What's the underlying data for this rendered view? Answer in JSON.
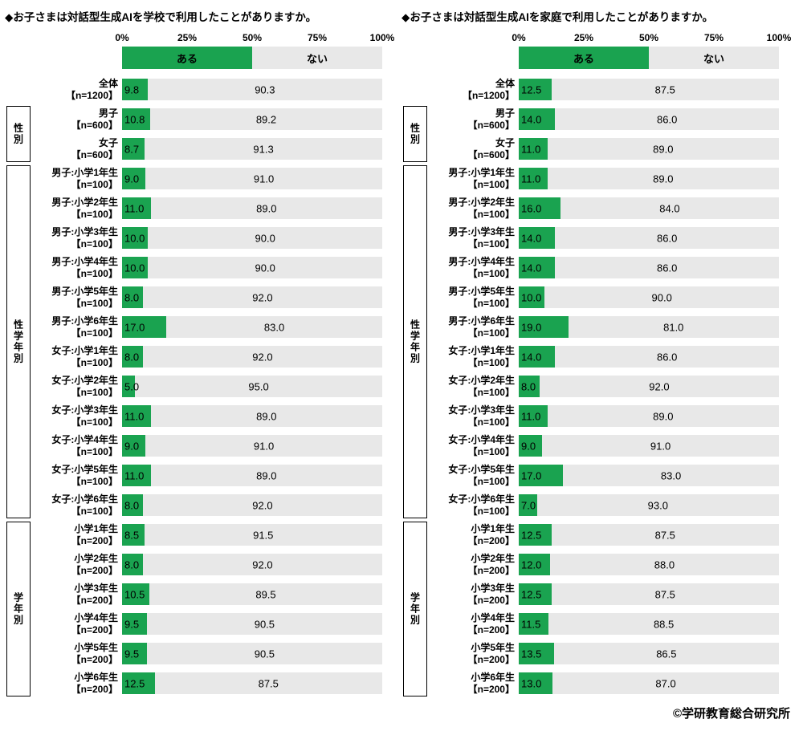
{
  "colors": {
    "aru": "#1aa350",
    "nai": "#e8e8e8"
  },
  "legend": {
    "aru": "ある",
    "nai": "ない"
  },
  "axis": {
    "ticks": [
      "0%",
      "25%",
      "50%",
      "75%",
      "100%"
    ],
    "min": 0,
    "max": 100
  },
  "groups": [
    {
      "label": "性別",
      "start": 1,
      "end": 2
    },
    {
      "label": "性学年別",
      "start": 3,
      "end": 14
    },
    {
      "label": "学年別",
      "start": 15,
      "end": 20
    }
  ],
  "footer": {
    "credit": "©学研教育総合研究所"
  },
  "chart_data": [
    {
      "type": "bar",
      "orientation": "horizontal",
      "stacked": true,
      "title": "◆お子さまは対話型生成AIを学校で利用したことがありますか。",
      "xlim": [
        0,
        100
      ],
      "legend_position": "top",
      "grid": false,
      "categories": [
        {
          "label": "全体",
          "n": "【n=1200】"
        },
        {
          "label": "男子",
          "n": "【n=600】"
        },
        {
          "label": "女子",
          "n": "【n=600】"
        },
        {
          "label": "男子:小学1年生",
          "n": "【n=100】"
        },
        {
          "label": "男子:小学2年生",
          "n": "【n=100】"
        },
        {
          "label": "男子:小学3年生",
          "n": "【n=100】"
        },
        {
          "label": "男子:小学4年生",
          "n": "【n=100】"
        },
        {
          "label": "男子:小学5年生",
          "n": "【n=100】"
        },
        {
          "label": "男子:小学6年生",
          "n": "【n=100】"
        },
        {
          "label": "女子:小学1年生",
          "n": "【n=100】"
        },
        {
          "label": "女子:小学2年生",
          "n": "【n=100】"
        },
        {
          "label": "女子:小学3年生",
          "n": "【n=100】"
        },
        {
          "label": "女子:小学4年生",
          "n": "【n=100】"
        },
        {
          "label": "女子:小学5年生",
          "n": "【n=100】"
        },
        {
          "label": "女子:小学6年生",
          "n": "【n=100】"
        },
        {
          "label": "小学1年生",
          "n": "【n=200】"
        },
        {
          "label": "小学2年生",
          "n": "【n=200】"
        },
        {
          "label": "小学3年生",
          "n": "【n=200】"
        },
        {
          "label": "小学4年生",
          "n": "【n=200】"
        },
        {
          "label": "小学5年生",
          "n": "【n=200】"
        },
        {
          "label": "小学6年生",
          "n": "【n=200】"
        }
      ],
      "series": [
        {
          "name": "ある",
          "values": [
            9.8,
            10.8,
            8.7,
            9.0,
            11.0,
            10.0,
            10.0,
            8.0,
            17.0,
            8.0,
            5.0,
            11.0,
            9.0,
            11.0,
            8.0,
            8.5,
            8.0,
            10.5,
            9.5,
            9.5,
            12.5
          ]
        },
        {
          "name": "ない",
          "values": [
            90.3,
            89.2,
            91.3,
            91.0,
            89.0,
            90.0,
            90.0,
            92.0,
            83.0,
            92.0,
            95.0,
            89.0,
            91.0,
            89.0,
            92.0,
            91.5,
            92.0,
            89.5,
            90.5,
            90.5,
            87.5
          ]
        }
      ]
    },
    {
      "type": "bar",
      "orientation": "horizontal",
      "stacked": true,
      "title": "◆お子さまは対話型生成AIを家庭で利用したことがありますか。",
      "xlim": [
        0,
        100
      ],
      "legend_position": "top",
      "grid": false,
      "categories": [
        {
          "label": "全体",
          "n": "【n=1200】"
        },
        {
          "label": "男子",
          "n": "【n=600】"
        },
        {
          "label": "女子",
          "n": "【n=600】"
        },
        {
          "label": "男子:小学1年生",
          "n": "【n=100】"
        },
        {
          "label": "男子:小学2年生",
          "n": "【n=100】"
        },
        {
          "label": "男子:小学3年生",
          "n": "【n=100】"
        },
        {
          "label": "男子:小学4年生",
          "n": "【n=100】"
        },
        {
          "label": "男子:小学5年生",
          "n": "【n=100】"
        },
        {
          "label": "男子:小学6年生",
          "n": "【n=100】"
        },
        {
          "label": "女子:小学1年生",
          "n": "【n=100】"
        },
        {
          "label": "女子:小学2年生",
          "n": "【n=100】"
        },
        {
          "label": "女子:小学3年生",
          "n": "【n=100】"
        },
        {
          "label": "女子:小学4年生",
          "n": "【n=100】"
        },
        {
          "label": "女子:小学5年生",
          "n": "【n=100】"
        },
        {
          "label": "女子:小学6年生",
          "n": "【n=100】"
        },
        {
          "label": "小学1年生",
          "n": "【n=200】"
        },
        {
          "label": "小学2年生",
          "n": "【n=200】"
        },
        {
          "label": "小学3年生",
          "n": "【n=200】"
        },
        {
          "label": "小学4年生",
          "n": "【n=200】"
        },
        {
          "label": "小学5年生",
          "n": "【n=200】"
        },
        {
          "label": "小学6年生",
          "n": "【n=200】"
        }
      ],
      "series": [
        {
          "name": "ある",
          "values": [
            12.5,
            14.0,
            11.0,
            11.0,
            16.0,
            14.0,
            14.0,
            10.0,
            19.0,
            14.0,
            8.0,
            11.0,
            9.0,
            17.0,
            7.0,
            12.5,
            12.0,
            12.5,
            11.5,
            13.5,
            13.0
          ]
        },
        {
          "name": "ない",
          "values": [
            87.5,
            86.0,
            89.0,
            89.0,
            84.0,
            86.0,
            86.0,
            90.0,
            81.0,
            86.0,
            92.0,
            89.0,
            91.0,
            83.0,
            93.0,
            87.5,
            88.0,
            87.5,
            88.5,
            86.5,
            87.0
          ]
        }
      ]
    }
  ]
}
